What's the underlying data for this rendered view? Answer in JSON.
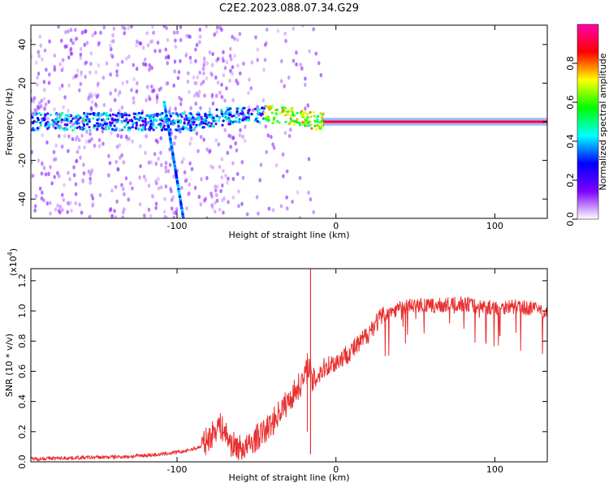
{
  "title": "C2E2.2023.088.07.34.G29",
  "chart_data": [
    {
      "type": "heatmap",
      "xlabel": "Height of straight line (km)",
      "ylabel": "Frequency (Hz)",
      "xlim": [
        -192,
        133
      ],
      "ylim": [
        -50,
        50
      ],
      "xticks": [
        -100,
        0,
        100
      ],
      "yticks": [
        -40,
        -20,
        0,
        20,
        40
      ],
      "colorbar": {
        "label": "Normalized spectral amplitude",
        "range": [
          0,
          1
        ],
        "ticks": [
          0.0,
          0.2,
          0.4,
          0.6,
          0.8
        ],
        "colors": [
          "#ffffff",
          "#7f00ff",
          "#0000ff",
          "#00ffff",
          "#00ff00",
          "#ffff00",
          "#ff0000",
          "#ff00aa"
        ]
      },
      "features": {
        "steady_line": {
          "x_from": -8,
          "x_to": 133,
          "frequency": 0,
          "amplitude": 0.9
        },
        "diagonal_streak": {
          "x_from": -108,
          "x_to": -96,
          "freq_from": 10,
          "freq_to": -50
        },
        "noisy_band": {
          "x_from": -192,
          "x_to": -8,
          "freq_center": 0
        }
      }
    },
    {
      "type": "line",
      "xlabel": "Height of straight line (km)",
      "ylabel": "SNR (10 * v/v)",
      "yscale_label": "(x10",
      "yscale_exponent": "4",
      "xlim": [
        -192,
        133
      ],
      "ylim": [
        0,
        1.28
      ],
      "xticks": [
        -100,
        0,
        100
      ],
      "yticks": [
        0.0,
        0.2,
        0.4,
        0.6,
        0.8,
        1.0,
        1.2
      ],
      "color": "#e83030",
      "series": [
        {
          "x": [
            -192,
            -170,
            -150,
            -130,
            -110,
            -95,
            -85,
            -78,
            -74,
            -70,
            -66,
            -60,
            -55,
            -50,
            -45,
            -40,
            -35,
            -30,
            -25,
            -20,
            -17,
            -15,
            -10,
            -5,
            0,
            5,
            10,
            15,
            20,
            25,
            30,
            40,
            50,
            60,
            70,
            80,
            90,
            100,
            110,
            120,
            133
          ],
          "y": [
            0.02,
            0.025,
            0.03,
            0.035,
            0.05,
            0.07,
            0.1,
            0.18,
            0.25,
            0.2,
            0.12,
            0.09,
            0.1,
            0.16,
            0.2,
            0.26,
            0.34,
            0.4,
            0.48,
            0.55,
            0.65,
            0.52,
            0.6,
            0.64,
            0.66,
            0.7,
            0.74,
            0.78,
            0.85,
            0.92,
            0.97,
            1.02,
            1.04,
            1.03,
            1.04,
            1.05,
            1.03,
            1.02,
            1.03,
            1.02,
            1.0
          ]
        }
      ]
    }
  ]
}
